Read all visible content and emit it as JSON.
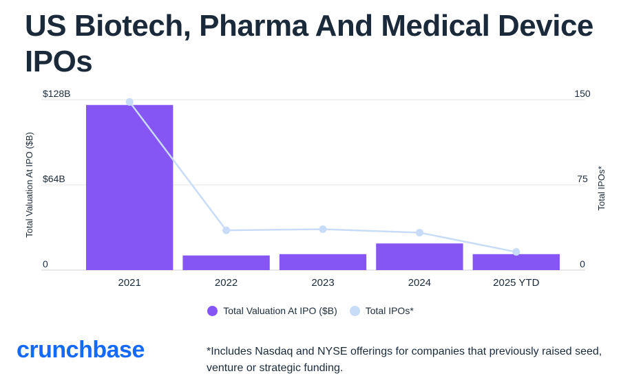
{
  "title": "US Biotech, Pharma And Medical Device IPOs",
  "colors": {
    "bar": "#8656f5",
    "line": "#c9dcf7",
    "text": "#1b2a3a",
    "grid": "#e6e6e6",
    "brand": "#146aff"
  },
  "chart_data": {
    "type": "bar",
    "categories": [
      "2021",
      "2022",
      "2023",
      "2024",
      "2025 YTD"
    ],
    "series": [
      {
        "name": "Total Valuation At IPO ($B)",
        "type": "bar",
        "axis": "left",
        "values": [
          124,
          11,
          12,
          20,
          12
        ]
      },
      {
        "name": "Total IPOs*",
        "type": "line",
        "axis": "right",
        "values": [
          148,
          35,
          36,
          33,
          16
        ]
      }
    ],
    "ylabel_left": "Total Valuation At IPO ($B)",
    "ylabel_right": "Total IPOs*",
    "ylim_left": [
      0,
      128
    ],
    "ylim_right": [
      0,
      150
    ],
    "yticks_left": [
      "0",
      "$64B",
      "$128B"
    ],
    "yticks_right": [
      "0",
      "75",
      "150"
    ],
    "ytick_values_left": [
      0,
      64,
      128
    ],
    "ytick_values_right": [
      0,
      75,
      150
    ],
    "grid": true,
    "legend_position": "bottom"
  },
  "legend": {
    "items": [
      "Total Valuation At IPO ($B)",
      "Total IPOs*"
    ]
  },
  "logo": {
    "text": "crunchbase"
  },
  "footnote": "*Includes Nasdaq and NYSE offerings for companies that previously raised seed, venture or strategic funding."
}
